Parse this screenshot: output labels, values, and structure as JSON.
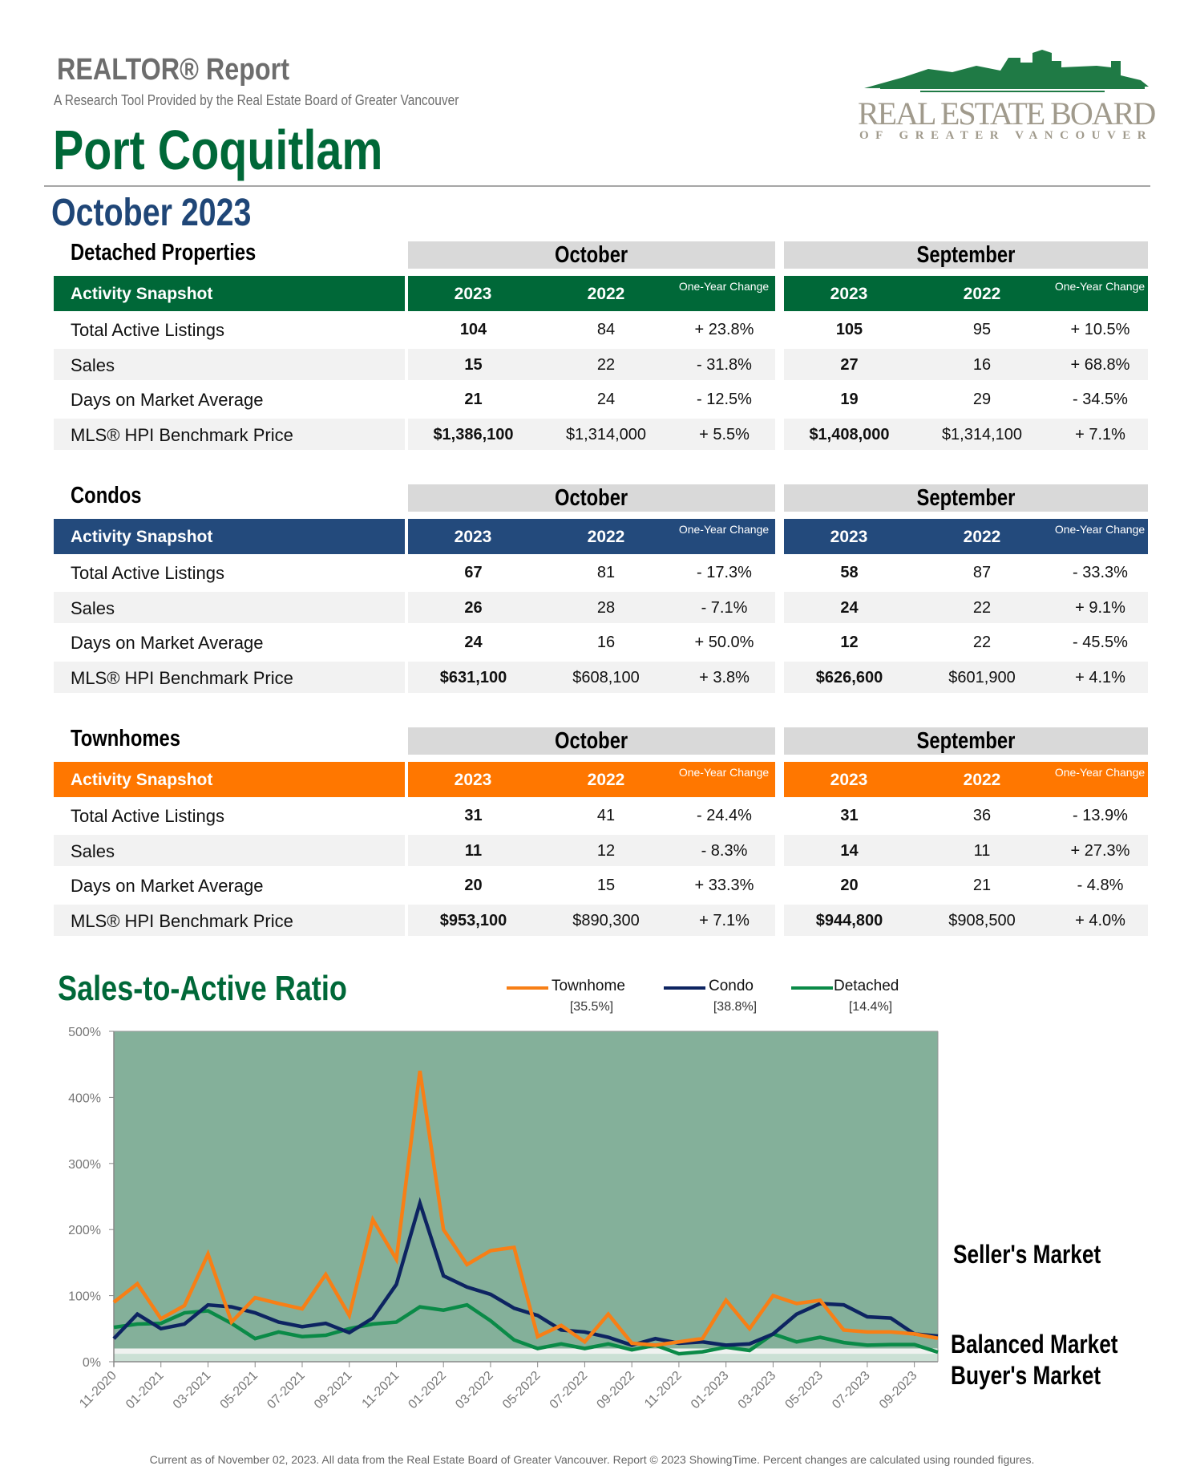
{
  "header": {
    "report_title": "REALTOR® Report",
    "subtitle": "A Research Tool Provided by the Real Estate Board of Greater Vancouver",
    "city": "Port Coquitlam",
    "period": "October 2023",
    "logo": {
      "line1": "REAL ESTATE BOARD",
      "line2": "OF GREATER VANCOUVER"
    }
  },
  "sections": [
    {
      "title": "Detached Properties",
      "color": "#006838",
      "snapshot_label": "Activity Snapshot",
      "groups": [
        {
          "month": "October",
          "years": [
            "2023",
            "2022"
          ],
          "change_label": "One-Year Change"
        },
        {
          "month": "September",
          "years": [
            "2023",
            "2022"
          ],
          "change_label": "One-Year Change"
        }
      ],
      "rows": [
        {
          "label": "Total Active Listings",
          "values": [
            "104",
            "84",
            "+ 23.8%",
            "105",
            "95",
            "+ 10.5%"
          ]
        },
        {
          "label": "Sales",
          "values": [
            "15",
            "22",
            "- 31.8%",
            "27",
            "16",
            "+ 68.8%"
          ]
        },
        {
          "label": "Days on Market Average",
          "values": [
            "21",
            "24",
            "- 12.5%",
            "19",
            "29",
            "- 34.5%"
          ]
        },
        {
          "label": "MLS® HPI Benchmark Price",
          "values": [
            "$1,386,100",
            "$1,314,000",
            "+ 5.5%",
            "$1,408,000",
            "$1,314,100",
            "+ 7.1%"
          ]
        }
      ]
    },
    {
      "title": "Condos",
      "color": "#234a7c",
      "snapshot_label": "Activity Snapshot",
      "groups": [
        {
          "month": "October",
          "years": [
            "2023",
            "2022"
          ],
          "change_label": "One-Year Change"
        },
        {
          "month": "September",
          "years": [
            "2023",
            "2022"
          ],
          "change_label": "One-Year Change"
        }
      ],
      "rows": [
        {
          "label": "Total Active Listings",
          "values": [
            "67",
            "81",
            "- 17.3%",
            "58",
            "87",
            "- 33.3%"
          ]
        },
        {
          "label": "Sales",
          "values": [
            "26",
            "28",
            "- 7.1%",
            "24",
            "22",
            "+ 9.1%"
          ]
        },
        {
          "label": "Days on Market Average",
          "values": [
            "24",
            "16",
            "+ 50.0%",
            "12",
            "22",
            "- 45.5%"
          ]
        },
        {
          "label": "MLS® HPI Benchmark Price",
          "values": [
            "$631,100",
            "$608,100",
            "+ 3.8%",
            "$626,600",
            "$601,900",
            "+ 4.1%"
          ]
        }
      ]
    },
    {
      "title": "Townhomes",
      "color": "#ff7700",
      "snapshot_label": "Activity Snapshot",
      "groups": [
        {
          "month": "October",
          "years": [
            "2023",
            "2022"
          ],
          "change_label": "One-Year Change"
        },
        {
          "month": "September",
          "years": [
            "2023",
            "2022"
          ],
          "change_label": "One-Year Change"
        }
      ],
      "rows": [
        {
          "label": "Total Active Listings",
          "values": [
            "31",
            "41",
            "- 24.4%",
            "31",
            "36",
            "- 13.9%"
          ]
        },
        {
          "label": "Sales",
          "values": [
            "11",
            "12",
            "- 8.3%",
            "14",
            "11",
            "+ 27.3%"
          ]
        },
        {
          "label": "Days on Market Average",
          "values": [
            "20",
            "15",
            "+ 33.3%",
            "20",
            "21",
            "- 4.8%"
          ]
        },
        {
          "label": "MLS® HPI Benchmark Price",
          "values": [
            "$953,100",
            "$890,300",
            "+ 7.1%",
            "$944,800",
            "$908,500",
            "+ 4.0%"
          ]
        }
      ]
    }
  ],
  "chart": {
    "title": "Sales-to-Active Ratio",
    "market_labels": {
      "seller": "Seller's Market",
      "balanced": "Balanced Market",
      "buyer": "Buyer's Market"
    },
    "colors": {
      "plot_bg": "#84b09a",
      "balanced_band": "#eff2f0",
      "buyer_band": "#cbe0d5"
    }
  },
  "chart_data": {
    "type": "line",
    "title": "Sales-to-Active Ratio",
    "ylim": [
      0,
      500
    ],
    "yticks": [
      "0%",
      "100%",
      "200%",
      "300%",
      "400%",
      "500%"
    ],
    "x": [
      "11-2020",
      "12-2020",
      "01-2021",
      "02-2021",
      "03-2021",
      "04-2021",
      "05-2021",
      "06-2021",
      "07-2021",
      "08-2021",
      "09-2021",
      "10-2021",
      "11-2021",
      "12-2021",
      "01-2022",
      "02-2022",
      "03-2022",
      "04-2022",
      "05-2022",
      "06-2022",
      "07-2022",
      "08-2022",
      "09-2022",
      "10-2022",
      "11-2022",
      "12-2022",
      "01-2023",
      "02-2023",
      "03-2023",
      "04-2023",
      "05-2023",
      "06-2023",
      "07-2023",
      "08-2023",
      "09-2023",
      "10-2023"
    ],
    "xticks": [
      "11-2020",
      "01-2021",
      "03-2021",
      "05-2021",
      "07-2021",
      "09-2021",
      "11-2021",
      "01-2022",
      "03-2022",
      "05-2022",
      "07-2022",
      "09-2022",
      "11-2022",
      "01-2023",
      "03-2023",
      "05-2023",
      "07-2023",
      "09-2023"
    ],
    "bands": {
      "buyer": [
        0,
        12
      ],
      "balanced": [
        12,
        20
      ],
      "seller": [
        20,
        500
      ]
    },
    "legend_position": "top",
    "series": [
      {
        "name": "Townhome",
        "current": "[35.5%]",
        "color": "#f77f16",
        "values": [
          90,
          118,
          65,
          85,
          163,
          60,
          97,
          88,
          80,
          132,
          70,
          215,
          155,
          440,
          200,
          147,
          168,
          173,
          38,
          55,
          30,
          72,
          28,
          25,
          30,
          35,
          93,
          50,
          100,
          88,
          93,
          48,
          45,
          45,
          42,
          35.5
        ]
      },
      {
        "name": "Condo",
        "current": "[38.8%]",
        "color": "#0d2461",
        "values": [
          35,
          72,
          50,
          57,
          86,
          83,
          74,
          60,
          53,
          58,
          44,
          66,
          117,
          240,
          130,
          113,
          102,
          81,
          70,
          48,
          45,
          37,
          25,
          35,
          28,
          30,
          25,
          27,
          42,
          72,
          88,
          86,
          68,
          66,
          42,
          38.8
        ]
      },
      {
        "name": "Detached",
        "current": "[14.4%]",
        "color": "#0a8a47",
        "values": [
          52,
          57,
          58,
          74,
          77,
          58,
          35,
          45,
          38,
          40,
          50,
          57,
          60,
          83,
          78,
          86,
          62,
          33,
          20,
          27,
          20,
          27,
          18,
          25,
          12,
          15,
          22,
          17,
          42,
          30,
          37,
          29,
          25,
          26,
          26,
          14.4
        ]
      }
    ]
  },
  "footer": "Current as of November 02, 2023. All data from the Real Estate Board of Greater Vancouver. Report © 2023 ShowingTime. Percent changes are calculated using rounded figures."
}
